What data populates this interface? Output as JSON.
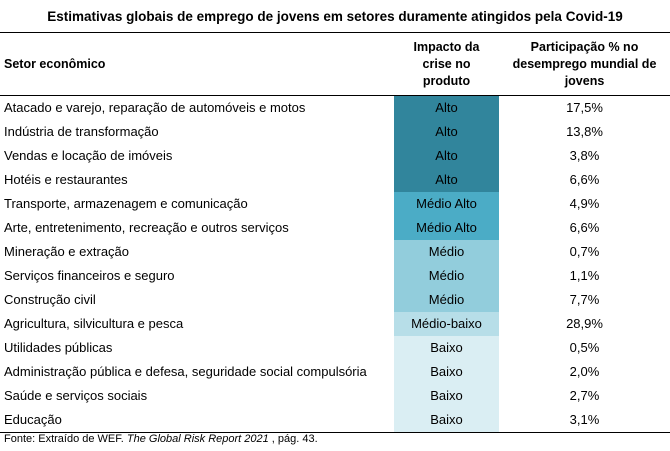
{
  "title": "Estimativas globais de emprego de jovens em setores duramente atingidos pela Covid-19",
  "headers": {
    "sector": "Setor econômico",
    "impact": "Impacto da crise no produto",
    "share": "Participação % no desemprego mundial de jovens"
  },
  "impact_colors": {
    "Alto": "#31859c",
    "Médio Alto": "#4bacc6",
    "Médio": "#92cddc",
    "Médio-baixo": "#b7dee8",
    "Baixo": "#daeef3"
  },
  "rows": [
    {
      "sector": "Atacado e varejo, reparação de automóveis e motos",
      "impact": "Alto",
      "share": "17,5%"
    },
    {
      "sector": "Indústria de transformação",
      "impact": "Alto",
      "share": "13,8%"
    },
    {
      "sector": "Vendas e locação de imóveis",
      "impact": "Alto",
      "share": "3,8%"
    },
    {
      "sector": "Hotéis e restaurantes",
      "impact": "Alto",
      "share": "6,6%"
    },
    {
      "sector": "Transporte, armazenagem e comunicação",
      "impact": "Médio Alto",
      "share": "4,9%"
    },
    {
      "sector": "Arte, entretenimento, recreação e outros serviços",
      "impact": "Médio Alto",
      "share": "6,6%"
    },
    {
      "sector": "Mineração e extração",
      "impact": "Médio",
      "share": "0,7%"
    },
    {
      "sector": "Serviços financeiros e seguro",
      "impact": "Médio",
      "share": "1,1%"
    },
    {
      "sector": "Construção civil",
      "impact": "Médio",
      "share": "7,7%"
    },
    {
      "sector": "Agricultura, silvicultura e pesca",
      "impact": "Médio-baixo",
      "share": "28,9%"
    },
    {
      "sector": "Utilidades públicas",
      "impact": "Baixo",
      "share": "0,5%"
    },
    {
      "sector": "Administração pública e defesa, seguridade social compulsória",
      "impact": "Baixo",
      "share": "2,0%"
    },
    {
      "sector": "Saúde e serviços sociais",
      "impact": "Baixo",
      "share": "2,7%"
    },
    {
      "sector": "Educação",
      "impact": "Baixo",
      "share": "3,1%"
    }
  ],
  "source": {
    "prefix": "Fonte: Extraído de WEF. ",
    "title": "The Global Risk Report 2021",
    "suffix": " , pág. 43."
  }
}
